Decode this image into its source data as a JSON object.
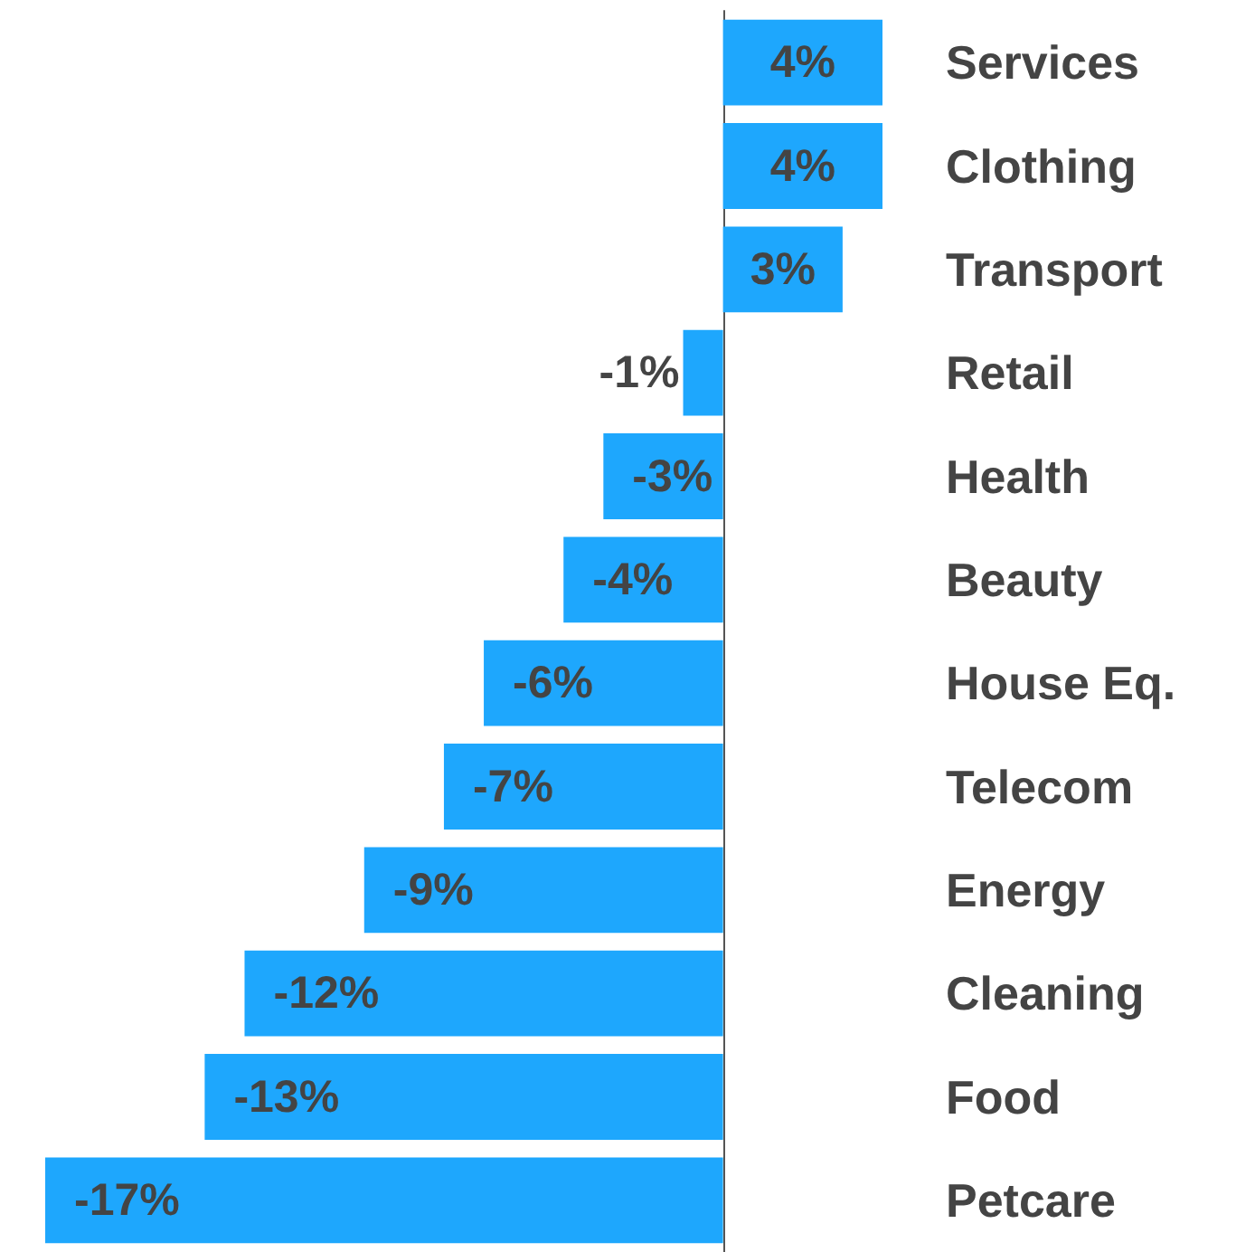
{
  "chart_data": {
    "type": "bar",
    "orientation": "horizontal",
    "categories": [
      "Services",
      "Clothing",
      "Transport",
      "Retail",
      "Health",
      "Beauty",
      "House Eq.",
      "Telecom",
      "Energy",
      "Cleaning",
      "Food",
      "Petcare"
    ],
    "values": [
      4,
      4,
      3,
      -1,
      -3,
      -4,
      -6,
      -7,
      -9,
      -12,
      -13,
      -17
    ],
    "value_labels": [
      "4%",
      "4%",
      "3%",
      "-1%",
      "-3%",
      "-4%",
      "-6%",
      "-7%",
      "-9%",
      "-12%",
      "-13%",
      "-17%"
    ],
    "color": "#1ea7fd"
  }
}
